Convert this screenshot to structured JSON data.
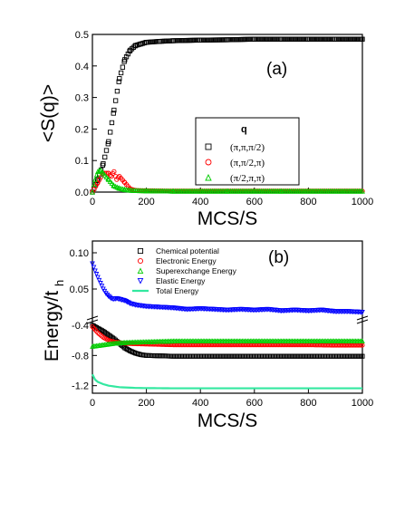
{
  "chart_data": [
    {
      "type": "scatter",
      "panel_label": "(a)",
      "xlabel": "MCS/S",
      "ylabel": "<S(q)>",
      "xlim": [
        0,
        1000
      ],
      "ylim": [
        0,
        0.5
      ],
      "x_ticks": [
        "0",
        "200",
        "400",
        "600",
        "800",
        "1000"
      ],
      "y_ticks": [
        "0.0",
        "0.1",
        "0.2",
        "0.3",
        "0.4",
        "0.5"
      ],
      "legend": {
        "title": "q",
        "placement": "right"
      },
      "series": [
        {
          "name": "(π,π,π/2)",
          "color": "#000000",
          "marker": "square",
          "x": [
            0,
            20,
            40,
            60,
            80,
            100,
            120,
            140,
            160,
            180,
            200,
            250,
            300,
            400,
            500,
            600,
            700,
            800,
            900,
            1000
          ],
          "y": [
            0.0,
            0.04,
            0.09,
            0.16,
            0.26,
            0.36,
            0.42,
            0.45,
            0.465,
            0.47,
            0.475,
            0.478,
            0.48,
            0.482,
            0.483,
            0.485,
            0.485,
            0.485,
            0.485,
            0.485
          ]
        },
        {
          "name": "(π,π/2,π)",
          "color": "#ff0000",
          "marker": "circle",
          "x": [
            0,
            20,
            40,
            60,
            70,
            80,
            90,
            100,
            120,
            140,
            160,
            200,
            300,
            500,
            700,
            1000
          ],
          "y": [
            0.0,
            0.03,
            0.06,
            0.06,
            0.05,
            0.065,
            0.04,
            0.05,
            0.03,
            0.01,
            0.005,
            0.004,
            0.003,
            0.003,
            0.003,
            0.003
          ]
        },
        {
          "name": "(π/2,π,π)",
          "color": "#00cc00",
          "marker": "triangle",
          "x": [
            0,
            10,
            20,
            30,
            40,
            60,
            80,
            100,
            120,
            150,
            200,
            300,
            500,
            700,
            1000
          ],
          "y": [
            0.0,
            0.04,
            0.065,
            0.07,
            0.06,
            0.04,
            0.02,
            0.012,
            0.008,
            0.005,
            0.004,
            0.003,
            0.003,
            0.003,
            0.003
          ]
        }
      ]
    },
    {
      "type": "scatter",
      "panel_label": "(b)",
      "xlabel": "MCS/S",
      "ylabel": "Energy/t",
      "ylabel_sub": "h",
      "xlim": [
        0,
        1000
      ],
      "axis_break": true,
      "upper_ylim": [
        0.01,
        0.1
      ],
      "upper_y_ticks": [
        "0.05",
        "0.10"
      ],
      "lower_ylim": [
        -1.3,
        -0.4
      ],
      "lower_y_ticks": [
        "-0.4",
        "-0.8",
        "-1.2"
      ],
      "x_ticks": [
        "0",
        "200",
        "400",
        "600",
        "800",
        "1000"
      ],
      "legend": {
        "placement": "top-right"
      },
      "series": [
        {
          "name": "Chemical potential",
          "color": "#000000",
          "marker": "square",
          "axis": "lower",
          "x": [
            0,
            20,
            40,
            60,
            80,
            100,
            120,
            140,
            160,
            180,
            200,
            250,
            300,
            400,
            500,
            600,
            700,
            800,
            900,
            1000
          ],
          "y": [
            -0.4,
            -0.44,
            -0.48,
            -0.53,
            -0.58,
            -0.64,
            -0.7,
            -0.74,
            -0.77,
            -0.79,
            -0.8,
            -0.805,
            -0.81,
            -0.81,
            -0.81,
            -0.81,
            -0.81,
            -0.81,
            -0.81,
            -0.81
          ]
        },
        {
          "name": "Electronic Energy",
          "color": "#ff0000",
          "marker": "circle",
          "axis": "lower",
          "x": [
            0,
            20,
            40,
            60,
            80,
            100,
            120,
            150,
            200,
            250,
            300,
            400,
            500,
            600,
            700,
            800,
            900,
            1000
          ],
          "y": [
            -0.42,
            -0.5,
            -0.56,
            -0.6,
            -0.62,
            -0.63,
            -0.64,
            -0.645,
            -0.65,
            -0.655,
            -0.66,
            -0.66,
            -0.66,
            -0.66,
            -0.66,
            -0.66,
            -0.665,
            -0.665
          ]
        },
        {
          "name": "Superexchange Energy",
          "color": "#00cc00",
          "marker": "triangle",
          "axis": "lower",
          "x": [
            0,
            20,
            40,
            60,
            80,
            100,
            120,
            150,
            200,
            250,
            300,
            400,
            500,
            600,
            700,
            800,
            900,
            1000
          ],
          "y": [
            -0.68,
            -0.67,
            -0.66,
            -0.65,
            -0.64,
            -0.635,
            -0.63,
            -0.625,
            -0.62,
            -0.615,
            -0.61,
            -0.61,
            -0.61,
            -0.61,
            -0.61,
            -0.61,
            -0.61,
            -0.61
          ]
        },
        {
          "name": "Elastic Energy",
          "color": "#0000ff",
          "marker": "triangle-down",
          "axis": "upper",
          "x": [
            0,
            10,
            20,
            30,
            40,
            50,
            60,
            70,
            80,
            90,
            100,
            120,
            140,
            160,
            200,
            250,
            300,
            350,
            400,
            450,
            500,
            550,
            600,
            650,
            700,
            750,
            800,
            850,
            900,
            950,
            1000
          ],
          "y": [
            0.085,
            0.075,
            0.066,
            0.058,
            0.05,
            0.044,
            0.04,
            0.037,
            0.036,
            0.037,
            0.036,
            0.034,
            0.03,
            0.028,
            0.026,
            0.025,
            0.024,
            0.022,
            0.023,
            0.022,
            0.021,
            0.022,
            0.021,
            0.022,
            0.02,
            0.021,
            0.02,
            0.021,
            0.019,
            0.019,
            0.018
          ]
        },
        {
          "name": "Total Energy",
          "color": "#33e8a0",
          "marker": "line",
          "axis": "lower",
          "x": [
            0,
            10,
            20,
            40,
            60,
            80,
            100,
            130,
            160,
            200,
            300,
            400,
            500,
            600,
            700,
            800,
            900,
            1000
          ],
          "y": [
            -1.05,
            -1.12,
            -1.15,
            -1.18,
            -1.2,
            -1.21,
            -1.22,
            -1.225,
            -1.23,
            -1.232,
            -1.235,
            -1.235,
            -1.235,
            -1.235,
            -1.235,
            -1.235,
            -1.235,
            -1.235
          ]
        }
      ]
    }
  ]
}
